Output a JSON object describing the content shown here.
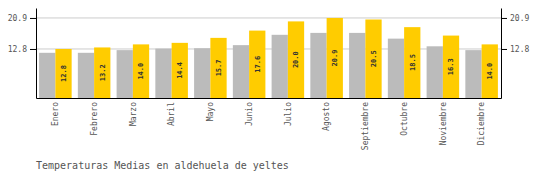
{
  "chart_data": {
    "type": "bar",
    "title": "Temperaturas Medias en aldehuela de yeltes",
    "categories": [
      "Enero",
      "Febrero",
      "Marzo",
      "Abril",
      "Mayo",
      "Junio",
      "Julio",
      "Agosto",
      "Septiembre",
      "Octubre",
      "Noviembre",
      "Diciembre"
    ],
    "series": [
      {
        "color": "#BBBBBB",
        "values": [
          11.8,
          11.8,
          12.5,
          12.9,
          13.0,
          13.8,
          16.5,
          17.0,
          17.0,
          15.5,
          13.5,
          12.5
        ]
      },
      {
        "color": "#FFCC00",
        "values": [
          12.8,
          13.2,
          14.0,
          14.4,
          15.7,
          17.6,
          20.0,
          20.9,
          20.5,
          18.5,
          16.3,
          14.0
        ],
        "data_labels": true,
        "value_labels": [
          "12.8",
          "13.2",
          "14.0",
          "14.4",
          "15.7",
          "17.6",
          "20.0",
          "20.9",
          "20.5",
          "18.5",
          "16.3",
          "14.0"
        ]
      }
    ],
    "ylim": [
      0.0,
      23.5
    ],
    "yticks": [
      12.8,
      20.9
    ],
    "y2lim": [
      0.0,
      23.5
    ],
    "y2ticks": [
      12.8,
      20.9
    ],
    "grid": true
  }
}
